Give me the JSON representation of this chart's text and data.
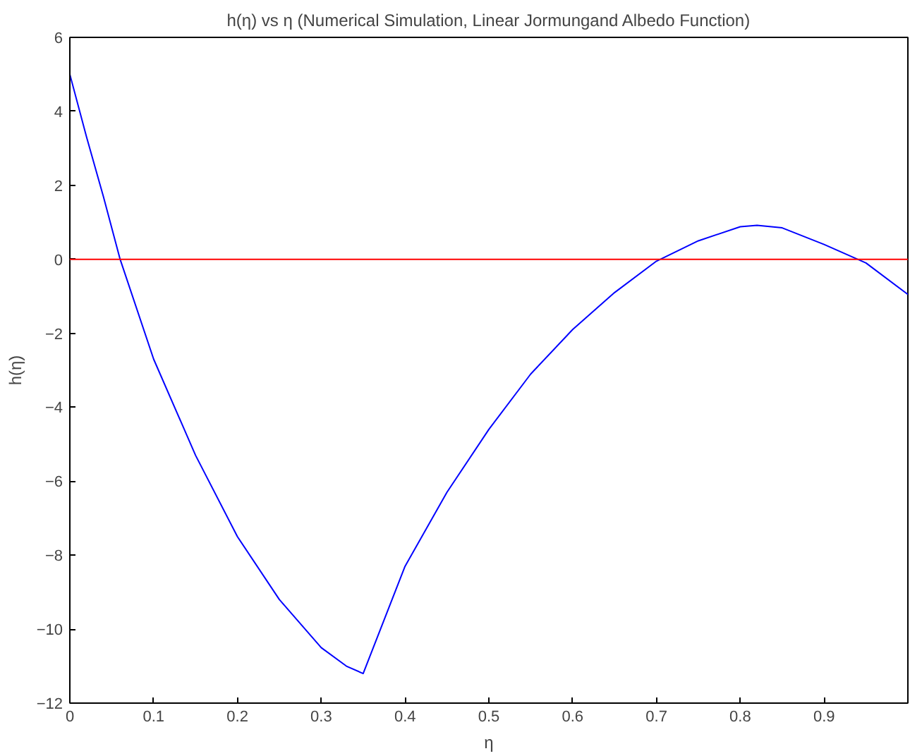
{
  "chart_data": {
    "type": "line",
    "title": "h(η) vs η (Numerical Simulation, Linear Jormungand Albedo Function)",
    "xlabel": "η",
    "ylabel": "h(η)",
    "x": [
      0,
      0.02,
      0.04,
      0.06,
      0.1,
      0.15,
      0.2,
      0.25,
      0.3,
      0.33,
      0.35,
      0.4,
      0.45,
      0.5,
      0.55,
      0.6,
      0.65,
      0.7,
      0.75,
      0.8,
      0.82,
      0.85,
      0.9,
      0.95,
      1.0
    ],
    "series": [
      {
        "color": "#0000ff",
        "values": [
          5,
          3.3,
          1.7,
          0,
          -2.7,
          -5.3,
          -7.5,
          -9.2,
          -10.5,
          -11.0,
          -11.2,
          -8.3,
          -6.3,
          -4.6,
          -3.1,
          -1.9,
          -0.9,
          -0.05,
          0.5,
          0.88,
          0.92,
          0.85,
          0.4,
          -0.1,
          -0.95
        ]
      }
    ],
    "ref_lines": [
      {
        "axis": "y",
        "value": 0,
        "color": "#ff0000"
      }
    ],
    "xlim": [
      0,
      1
    ],
    "ylim": [
      -12,
      6
    ],
    "xticks": [
      0,
      0.1,
      0.2,
      0.3,
      0.4,
      0.5,
      0.6,
      0.7,
      0.8,
      0.9
    ],
    "yticks": [
      -12,
      -10,
      -8,
      -6,
      -4,
      -2,
      0,
      2,
      4,
      6
    ],
    "line_style": "solid"
  }
}
